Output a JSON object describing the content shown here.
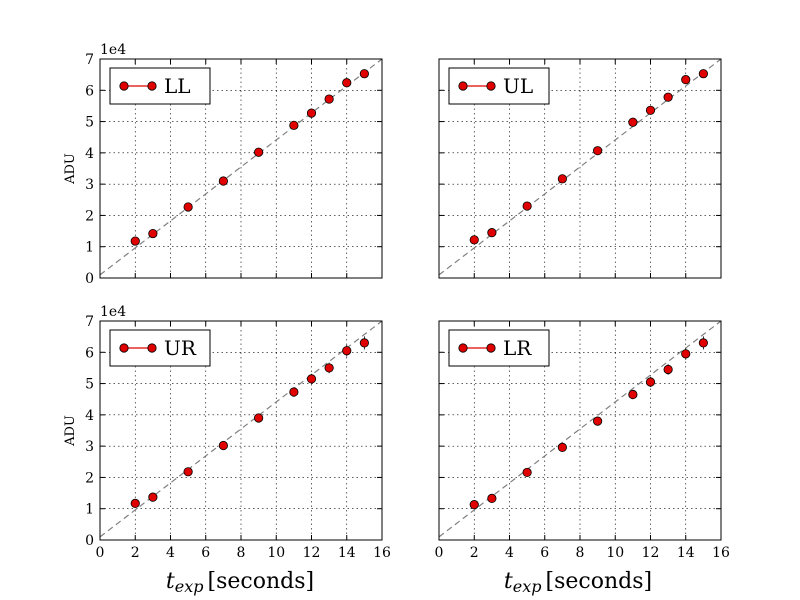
{
  "figure": {
    "x_axis_label_italic": "t",
    "x_axis_label_sub": "exp",
    "x_axis_label_suffix": "[seconds]",
    "y_axis_label": "ADU",
    "y_offset_label": "1e4"
  },
  "colors": {
    "marker_fill": "#e00000",
    "marker_edge": "#000000",
    "fit_line": "#808080",
    "grid": "#000000"
  },
  "chart_data": [
    {
      "type": "scatter",
      "legend": "LL",
      "legend_position": "top-left",
      "grid": true,
      "xlim": [
        0,
        16
      ],
      "ylim": [
        0,
        7
      ],
      "y_multiplier": "1e4",
      "x_ticks": [],
      "y_ticks": [
        "0",
        "1",
        "2",
        "3",
        "4",
        "5",
        "6",
        "7"
      ],
      "ylabel": "ADU",
      "fit_line": {
        "x": [
          0,
          16
        ],
        "y": [
          0.1,
          7.0
        ]
      },
      "x": [
        2,
        3,
        5,
        7,
        9,
        11,
        12,
        13,
        14,
        15
      ],
      "y": [
        1.18,
        1.42,
        2.27,
        3.1,
        4.02,
        4.88,
        5.27,
        5.72,
        6.24,
        6.53
      ],
      "error": [
        0.05,
        0.05,
        0.06,
        0.07,
        0.08,
        0.09,
        0.1,
        0.11,
        0.12,
        0.13
      ]
    },
    {
      "type": "scatter",
      "legend": "UL",
      "legend_position": "top-left",
      "grid": true,
      "xlim": [
        0,
        16
      ],
      "ylim": [
        0,
        7
      ],
      "y_multiplier": "",
      "x_ticks": [],
      "y_ticks": [],
      "ylabel": "",
      "fit_line": {
        "x": [
          0,
          16
        ],
        "y": [
          0.1,
          7.0
        ]
      },
      "x": [
        2,
        3,
        5,
        7,
        9,
        11,
        12,
        13,
        14,
        15
      ],
      "y": [
        1.22,
        1.45,
        2.3,
        3.17,
        4.07,
        4.98,
        5.36,
        5.78,
        6.34,
        6.53
      ],
      "error": [
        0.05,
        0.05,
        0.06,
        0.07,
        0.08,
        0.09,
        0.1,
        0.11,
        0.12,
        0.13
      ]
    },
    {
      "type": "scatter",
      "legend": "UR",
      "legend_position": "top-left",
      "grid": true,
      "xlim": [
        0,
        16
      ],
      "ylim": [
        0,
        7
      ],
      "y_multiplier": "1e4",
      "x_ticks": [
        "0",
        "2",
        "4",
        "6",
        "8",
        "10",
        "12",
        "14",
        "16"
      ],
      "y_ticks": [
        "0",
        "1",
        "2",
        "3",
        "4",
        "5",
        "6",
        "7"
      ],
      "ylabel": "ADU",
      "fit_line": {
        "x": [
          0,
          16
        ],
        "y": [
          0.1,
          7.0
        ]
      },
      "x": [
        2,
        3,
        5,
        7,
        9,
        11,
        12,
        13,
        14,
        15
      ],
      "y": [
        1.17,
        1.37,
        2.18,
        3.02,
        3.9,
        4.73,
        5.15,
        5.5,
        6.05,
        6.3
      ],
      "error": [
        0.06,
        0.06,
        0.08,
        0.1,
        0.12,
        0.15,
        0.16,
        0.17,
        0.19,
        0.21
      ]
    },
    {
      "type": "scatter",
      "legend": "LR",
      "legend_position": "top-left",
      "grid": true,
      "xlim": [
        0,
        16
      ],
      "ylim": [
        0,
        7
      ],
      "y_multiplier": "",
      "x_ticks": [
        "0",
        "2",
        "4",
        "6",
        "8",
        "10",
        "12",
        "14",
        "16"
      ],
      "y_ticks": [],
      "ylabel": "",
      "fit_line": {
        "x": [
          0,
          16
        ],
        "y": [
          0.1,
          7.0
        ]
      },
      "x": [
        2,
        3,
        5,
        7,
        9,
        11,
        12,
        13,
        14,
        15
      ],
      "y": [
        1.13,
        1.33,
        2.16,
        2.96,
        3.8,
        4.65,
        5.05,
        5.45,
        5.95,
        6.3
      ],
      "error": [
        0.06,
        0.06,
        0.08,
        0.1,
        0.12,
        0.15,
        0.16,
        0.17,
        0.19,
        0.21
      ]
    }
  ]
}
